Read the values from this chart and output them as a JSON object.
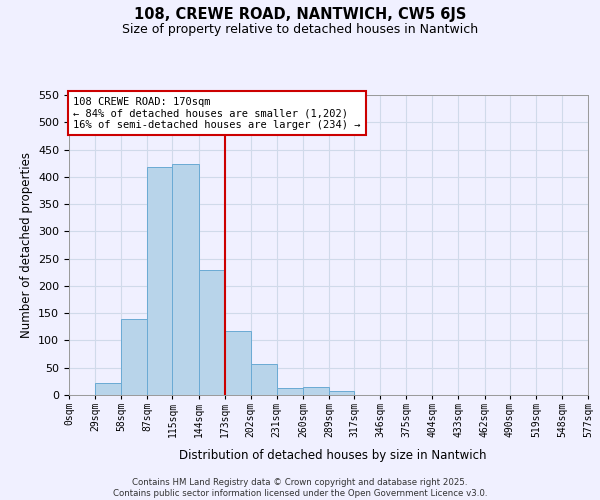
{
  "title": "108, CREWE ROAD, NANTWICH, CW5 6JS",
  "subtitle": "Size of property relative to detached houses in Nantwich",
  "xlabel": "Distribution of detached houses by size in Nantwich",
  "ylabel": "Number of detached properties",
  "bar_values": [
    0,
    22,
    140,
    418,
    424,
    229,
    117,
    57,
    12,
    15,
    7,
    0,
    0,
    0,
    0,
    0,
    0,
    0,
    0,
    0
  ],
  "bin_edges": [
    0,
    29,
    58,
    87,
    115,
    144,
    173,
    202,
    231,
    260,
    289,
    317,
    346,
    375,
    404,
    433,
    462,
    490,
    519,
    548,
    577
  ],
  "tick_labels": [
    "0sqm",
    "29sqm",
    "58sqm",
    "87sqm",
    "115sqm",
    "144sqm",
    "173sqm",
    "202sqm",
    "231sqm",
    "260sqm",
    "289sqm",
    "317sqm",
    "346sqm",
    "375sqm",
    "404sqm",
    "433sqm",
    "462sqm",
    "490sqm",
    "519sqm",
    "548sqm",
    "577sqm"
  ],
  "bar_color": "#b8d4ea",
  "bar_edge_color": "#6aaad4",
  "vline_x": 173,
  "vline_color": "#cc0000",
  "ylim": [
    0,
    550
  ],
  "yticks": [
    0,
    50,
    100,
    150,
    200,
    250,
    300,
    350,
    400,
    450,
    500,
    550
  ],
  "annotation_title": "108 CREWE ROAD: 170sqm",
  "annotation_line1": "← 84% of detached houses are smaller (1,202)",
  "annotation_line2": "16% of semi-detached houses are larger (234) →",
  "footer_line1": "Contains HM Land Registry data © Crown copyright and database right 2025.",
  "footer_line2": "Contains public sector information licensed under the Open Government Licence v3.0.",
  "bg_color": "#f0f0ff",
  "grid_color": "#d0daea"
}
